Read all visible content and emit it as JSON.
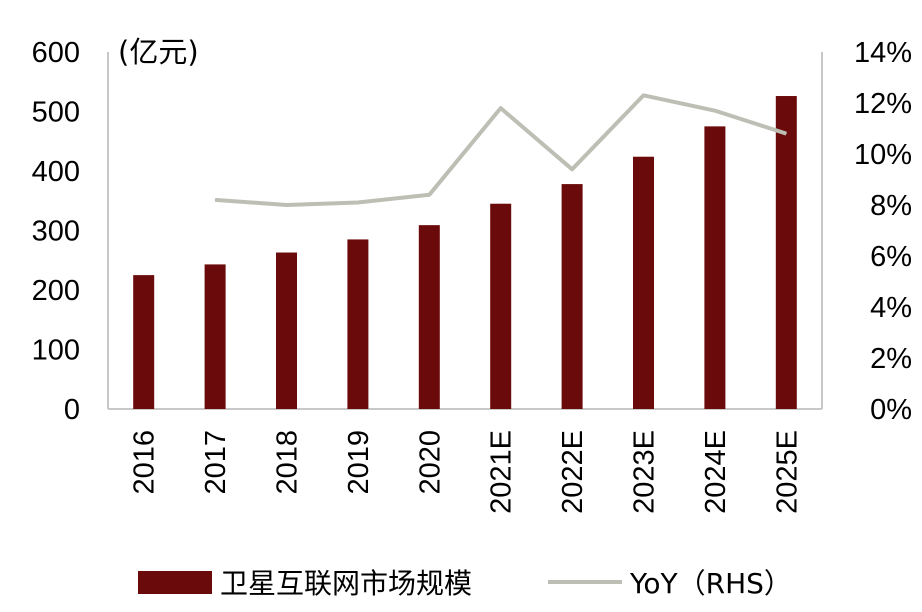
{
  "chart_data": {
    "type": "bar",
    "categories": [
      "2016",
      "2017",
      "2018",
      "2019",
      "2020",
      "2021E",
      "2022E",
      "2023E",
      "2024E",
      "2025E"
    ],
    "series": [
      {
        "name": "卫星互联网市场规模",
        "type": "bar",
        "axis": "left",
        "values": [
          225,
          243,
          263,
          285,
          309,
          345,
          378,
          424,
          475,
          526
        ]
      },
      {
        "name": "YoY（RHS）",
        "type": "line",
        "axis": "right",
        "values": [
          null,
          8.2,
          8.0,
          8.1,
          8.4,
          11.8,
          9.4,
          12.3,
          11.7,
          10.8
        ]
      }
    ],
    "unit_label": "(亿元)",
    "ylim_left": [
      0,
      600
    ],
    "left_ticks": [
      "0",
      "100",
      "200",
      "300",
      "400",
      "500",
      "600"
    ],
    "ylim_right": [
      0,
      14
    ],
    "right_ticks": [
      "0%",
      "2%",
      "4%",
      "6%",
      "8%",
      "10%",
      "12%",
      "14%"
    ],
    "grid": false,
    "legend_position": "bottom",
    "colors": {
      "bar": "#6b0a0a",
      "line": "#bdbfb4",
      "axis": "#c8c8c8"
    }
  }
}
